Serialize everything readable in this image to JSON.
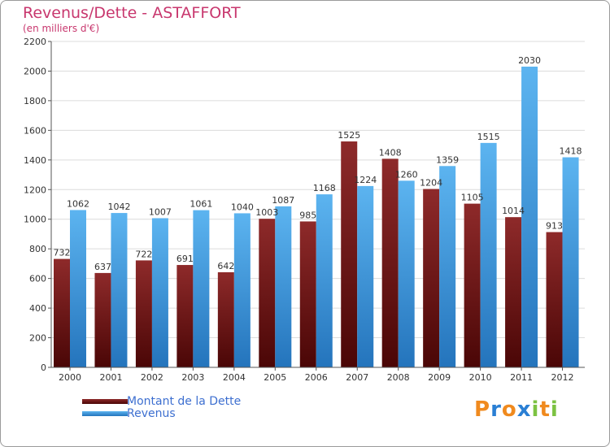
{
  "chart_data": {
    "type": "bar",
    "title": "Revenus/Dette - ASTAFFORT",
    "subtitle": "(en milliers d'€)",
    "categories": [
      "2000",
      "2001",
      "2002",
      "2003",
      "2004",
      "2005",
      "2006",
      "2007",
      "2008",
      "2009",
      "2010",
      "2011",
      "2012"
    ],
    "series": [
      {
        "name": "Montant de la Dette",
        "color": "#7a1b1b",
        "values": [
          732,
          637,
          722,
          691,
          642,
          1003,
          985,
          1525,
          1408,
          1204,
          1105,
          1014,
          913
        ],
        "labels": [
          "732",
          "637",
          "722",
          "691",
          "642",
          "1003",
          "985",
          "1525",
          "1408",
          "1204",
          "1105",
          "1014",
          "913"
        ]
      },
      {
        "name": "Revenus",
        "color": "#4aa3e8",
        "values": [
          1062,
          1042,
          1007,
          1061,
          1040,
          1087,
          1168,
          1224,
          1260,
          1359,
          1515,
          2030,
          1418
        ],
        "labels": [
          "1062",
          "1042",
          "1007",
          "1061",
          "1040",
          "1087",
          "1168",
          "1224",
          "1260",
          "1359",
          "1515",
          "2030",
          "1418"
        ]
      }
    ],
    "ylim": [
      0,
      2200
    ],
    "yticks": [
      "0",
      "200",
      "400",
      "600",
      "800",
      "1000",
      "1200",
      "1400",
      "1600",
      "1800",
      "2000",
      "2200"
    ],
    "grid": true,
    "legend_position": "bottom-left"
  },
  "logo": {
    "text": "Proxiti",
    "letters": [
      "P",
      "r",
      "o",
      "x",
      "i",
      "t",
      "i"
    ],
    "colors": [
      "#f08a1e",
      "#2a7fd4",
      "#f08a1e",
      "#2a7fd4",
      "#7cc242",
      "#f08a1e",
      "#7cc242"
    ]
  }
}
